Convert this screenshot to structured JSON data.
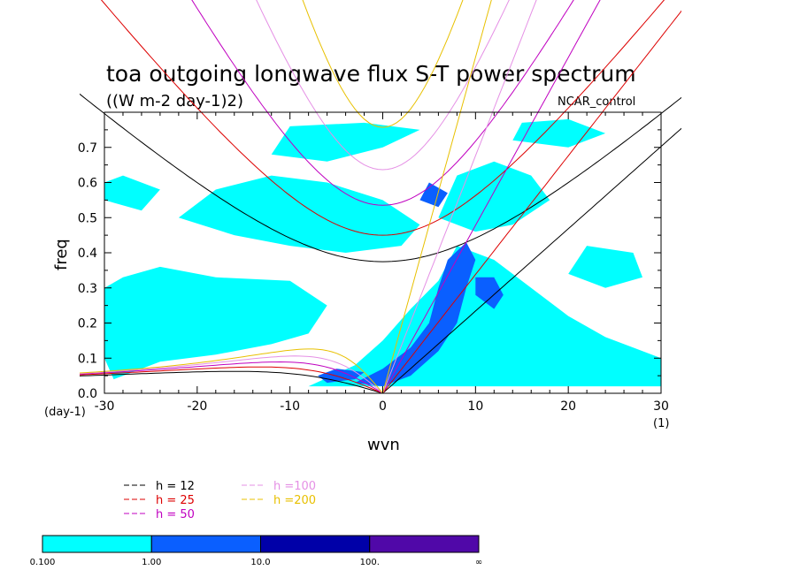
{
  "chart_data": {
    "type": "heatmap",
    "title": "toa outgoing longwave flux S-T power spectrum",
    "subtitle": "((W m-2 day-1)2)",
    "run_label": "NCAR_control",
    "xlabel": "wvn",
    "ylabel": "freq",
    "x_unit": "(1)",
    "y_unit": "(day-1)",
    "xlim": [
      -30,
      30
    ],
    "ylim": [
      0,
      0.8
    ],
    "x_ticks": [
      "-30",
      "-20",
      "-10",
      "0",
      "10",
      "20",
      "30"
    ],
    "y_ticks": [
      "0.0",
      "0.1",
      "0.2",
      "0.3",
      "0.4",
      "0.5",
      "0.6",
      "0.7"
    ],
    "x_tick_values": [
      -30,
      -20,
      -10,
      0,
      10,
      20,
      30
    ],
    "y_tick_values": [
      0,
      0.1,
      0.2,
      0.3,
      0.4,
      0.5,
      0.6,
      0.7
    ],
    "colorbar": {
      "labels": [
        "0.100",
        "1.00",
        "10.0",
        "100.",
        "∞"
      ],
      "colors": [
        "#00ffff",
        "#0a5fff",
        "#0000a8",
        "#5008a8"
      ]
    },
    "dispersion_curves": [
      {
        "label": "h = 12",
        "equivalent_depth": 12,
        "color": "#000000"
      },
      {
        "label": "h = 25",
        "equivalent_depth": 25,
        "color": "#dd0000"
      },
      {
        "label": "h = 50",
        "equivalent_depth": 50,
        "color": "#c000c0"
      },
      {
        "label": "h =100",
        "equivalent_depth": 100,
        "color": "#e590e5"
      },
      {
        "label": "h =200",
        "equivalent_depth": 200,
        "color": "#e8c000"
      }
    ],
    "contour_regions": [
      {
        "level": "0.100-1.00",
        "points": [
          [
            -29,
            0.04
          ],
          [
            -24,
            0.09
          ],
          [
            -18,
            0.11
          ],
          [
            -12,
            0.14
          ],
          [
            -8,
            0.17
          ],
          [
            -6,
            0.25
          ],
          [
            -10,
            0.32
          ],
          [
            -18,
            0.33
          ],
          [
            -24,
            0.36
          ],
          [
            -28,
            0.33
          ],
          [
            -30,
            0.3
          ],
          [
            -30,
            0.1
          ]
        ]
      },
      {
        "level": "0.100-1.00",
        "points": [
          [
            -22,
            0.5
          ],
          [
            -16,
            0.45
          ],
          [
            -10,
            0.42
          ],
          [
            -4,
            0.4
          ],
          [
            2,
            0.42
          ],
          [
            4,
            0.48
          ],
          [
            0,
            0.55
          ],
          [
            -6,
            0.6
          ],
          [
            -12,
            0.62
          ],
          [
            -18,
            0.58
          ]
        ]
      },
      {
        "level": "0.100-1.00",
        "points": [
          [
            -8,
            0.02
          ],
          [
            -3,
            0.08
          ],
          [
            0,
            0.15
          ],
          [
            3,
            0.24
          ],
          [
            6,
            0.32
          ],
          [
            8,
            0.42
          ],
          [
            12,
            0.38
          ],
          [
            16,
            0.3
          ],
          [
            20,
            0.22
          ],
          [
            24,
            0.16
          ],
          [
            28,
            0.12
          ],
          [
            30,
            0.1
          ],
          [
            30,
            0.02
          ],
          [
            22,
            0.02
          ],
          [
            12,
            0.02
          ],
          [
            4,
            0.02
          ]
        ]
      },
      {
        "level": "0.100-1.00",
        "points": [
          [
            6,
            0.5
          ],
          [
            10,
            0.46
          ],
          [
            14,
            0.48
          ],
          [
            18,
            0.55
          ],
          [
            16,
            0.62
          ],
          [
            12,
            0.66
          ],
          [
            8,
            0.62
          ]
        ]
      },
      {
        "level": "0.100-1.00",
        "points": [
          [
            -12,
            0.68
          ],
          [
            -6,
            0.66
          ],
          [
            0,
            0.7
          ],
          [
            4,
            0.75
          ],
          [
            -2,
            0.77
          ],
          [
            -10,
            0.76
          ]
        ]
      },
      {
        "level": "0.100-1.00",
        "points": [
          [
            20,
            0.34
          ],
          [
            24,
            0.3
          ],
          [
            28,
            0.33
          ],
          [
            27,
            0.4
          ],
          [
            22,
            0.42
          ]
        ]
      },
      {
        "level": "0.100-1.00",
        "points": [
          [
            -30,
            0.55
          ],
          [
            -26,
            0.52
          ],
          [
            -24,
            0.58
          ],
          [
            -28,
            0.62
          ],
          [
            -30,
            0.6
          ]
        ]
      },
      {
        "level": "0.100-1.00",
        "points": [
          [
            14,
            0.72
          ],
          [
            20,
            0.7
          ],
          [
            24,
            0.74
          ],
          [
            20,
            0.78
          ],
          [
            15,
            0.77
          ]
        ]
      },
      {
        "level": "1.00-10.0",
        "points": [
          [
            -3,
            0.03
          ],
          [
            0,
            0.07
          ],
          [
            3,
            0.13
          ],
          [
            5,
            0.2
          ],
          [
            6,
            0.3
          ],
          [
            7,
            0.38
          ],
          [
            9,
            0.43
          ],
          [
            10,
            0.38
          ],
          [
            9,
            0.3
          ],
          [
            8,
            0.2
          ],
          [
            6,
            0.12
          ],
          [
            3,
            0.05
          ],
          [
            0,
            0.02
          ]
        ]
      },
      {
        "level": "1.00-10.0",
        "points": [
          [
            10,
            0.28
          ],
          [
            12,
            0.24
          ],
          [
            13,
            0.28
          ],
          [
            12,
            0.33
          ],
          [
            10,
            0.33
          ]
        ]
      },
      {
        "level": "1.00-10.0",
        "points": [
          [
            -6,
            0.03
          ],
          [
            -3,
            0.04
          ],
          [
            -2,
            0.06
          ],
          [
            -5,
            0.07
          ],
          [
            -7,
            0.05
          ]
        ]
      },
      {
        "level": "1.00-10.0",
        "points": [
          [
            4,
            0.55
          ],
          [
            6,
            0.53
          ],
          [
            7,
            0.57
          ],
          [
            5,
            0.6
          ]
        ]
      }
    ]
  }
}
